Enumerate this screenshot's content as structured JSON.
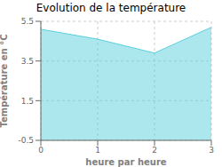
{
  "chart_data": {
    "type": "area",
    "title": "Evolution de la température",
    "xlabel": "heure par heure",
    "ylabel": "Température en °C",
    "x": [
      0,
      1,
      2,
      3
    ],
    "values": [
      5.1,
      4.6,
      3.9,
      5.2
    ],
    "xlim": [
      0,
      3
    ],
    "ylim": [
      -0.5,
      5.5
    ],
    "xticks": [
      0,
      1,
      2,
      3
    ],
    "yticks": [
      -0.5,
      1.5,
      3.5,
      5.5
    ],
    "color": "#5bcfde",
    "grid": true
  }
}
